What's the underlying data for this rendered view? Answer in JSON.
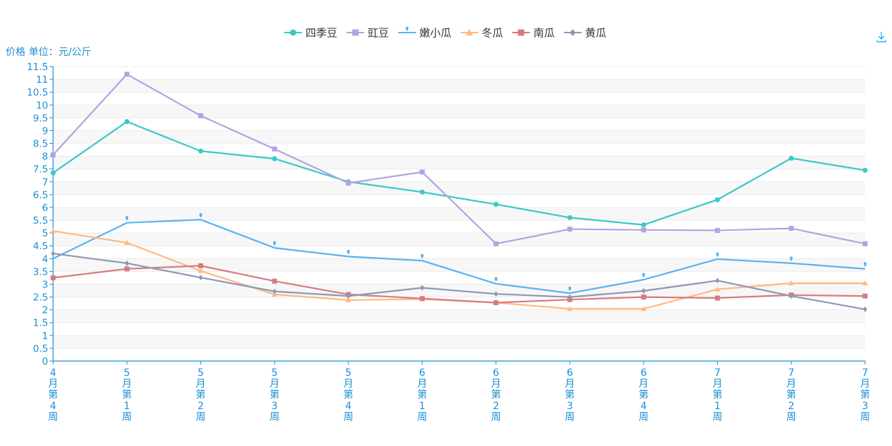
{
  "chart_data": {
    "type": "line",
    "ylabel": "价格 单位：元/公斤",
    "ylim": [
      0,
      11.5
    ],
    "y_ticks": [
      "0",
      "0.5",
      "1",
      "1.5",
      "2",
      "2.5",
      "3",
      "3.5",
      "4",
      "4.5",
      "5",
      "5.5",
      "6",
      "6.5",
      "7",
      "7.5",
      "8",
      "8.5",
      "9",
      "9.5",
      "10",
      "10.5",
      "11",
      "11.5"
    ],
    "categories": [
      [
        "4",
        "月",
        "第",
        "4",
        "周"
      ],
      [
        "5",
        "月",
        "第",
        "1",
        "周"
      ],
      [
        "5",
        "月",
        "第",
        "2",
        "周"
      ],
      [
        "5",
        "月",
        "第",
        "3",
        "周"
      ],
      [
        "5",
        "月",
        "第",
        "4",
        "周"
      ],
      [
        "6",
        "月",
        "第",
        "1",
        "周"
      ],
      [
        "6",
        "月",
        "第",
        "2",
        "周"
      ],
      [
        "6",
        "月",
        "第",
        "3",
        "周"
      ],
      [
        "6",
        "月",
        "第",
        "4",
        "周"
      ],
      [
        "7",
        "月",
        "第",
        "1",
        "周"
      ],
      [
        "7",
        "月",
        "第",
        "2",
        "周"
      ],
      [
        "7",
        "月",
        "第",
        "3",
        "周"
      ]
    ],
    "legend_position": "top-center",
    "grid": true,
    "series": [
      {
        "name": "四季豆",
        "color": "#3ac8c8",
        "symbol": "circle",
        "values": [
          7.35,
          9.35,
          8.2,
          7.9,
          7.0,
          6.6,
          6.12,
          5.6,
          5.32,
          6.3,
          7.92,
          7.45
        ]
      },
      {
        "name": "豇豆",
        "color": "#b6a2de",
        "symbol": "rect",
        "values": [
          8.05,
          11.2,
          9.58,
          8.28,
          6.95,
          7.38,
          4.58,
          5.15,
          5.12,
          5.1,
          5.18,
          4.58
        ]
      },
      {
        "name": "嫩小瓜",
        "color": "#5ab1ef",
        "symbol": "pin",
        "values": [
          4.0,
          5.4,
          5.52,
          4.42,
          4.08,
          3.92,
          3.02,
          2.65,
          3.18,
          3.98,
          3.82,
          3.6
        ]
      },
      {
        "name": "冬瓜",
        "color": "#ffb980",
        "symbol": "triangle",
        "values": [
          5.08,
          4.62,
          3.52,
          2.6,
          2.38,
          2.42,
          2.28,
          2.04,
          2.04,
          2.8,
          3.04,
          3.04
        ]
      },
      {
        "name": "南瓜",
        "color": "#d87a80",
        "symbol": "rect",
        "values": [
          3.25,
          3.6,
          3.72,
          3.12,
          2.6,
          2.44,
          2.28,
          2.4,
          2.5,
          2.46,
          2.58,
          2.54
        ]
      },
      {
        "name": "黄瓜",
        "color": "#8d98b3",
        "symbol": "diamond",
        "values": [
          4.2,
          3.82,
          3.26,
          2.72,
          2.54,
          2.86,
          2.62,
          2.5,
          2.74,
          3.14,
          2.54,
          2.02
        ]
      }
    ]
  },
  "toolbar": {
    "download_icon": "download-icon",
    "download_color": "#33b5e5"
  }
}
